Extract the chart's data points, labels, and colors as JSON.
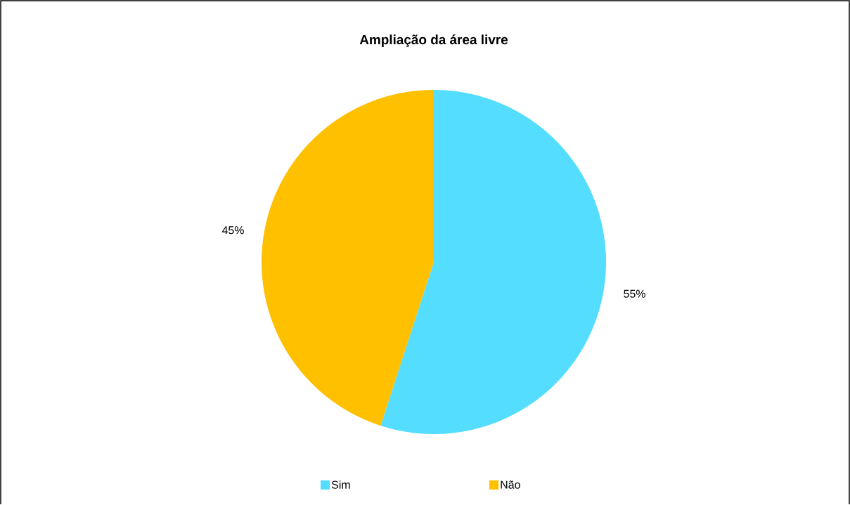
{
  "chart_data": {
    "type": "pie",
    "title": "Ampliação da área livre",
    "categories": [
      "Sim",
      "Não"
    ],
    "values": [
      55,
      45
    ],
    "colors": [
      "#55ddff",
      "#ffc000"
    ],
    "value_labels": [
      "55%",
      "45%"
    ],
    "legend": "bottom"
  }
}
